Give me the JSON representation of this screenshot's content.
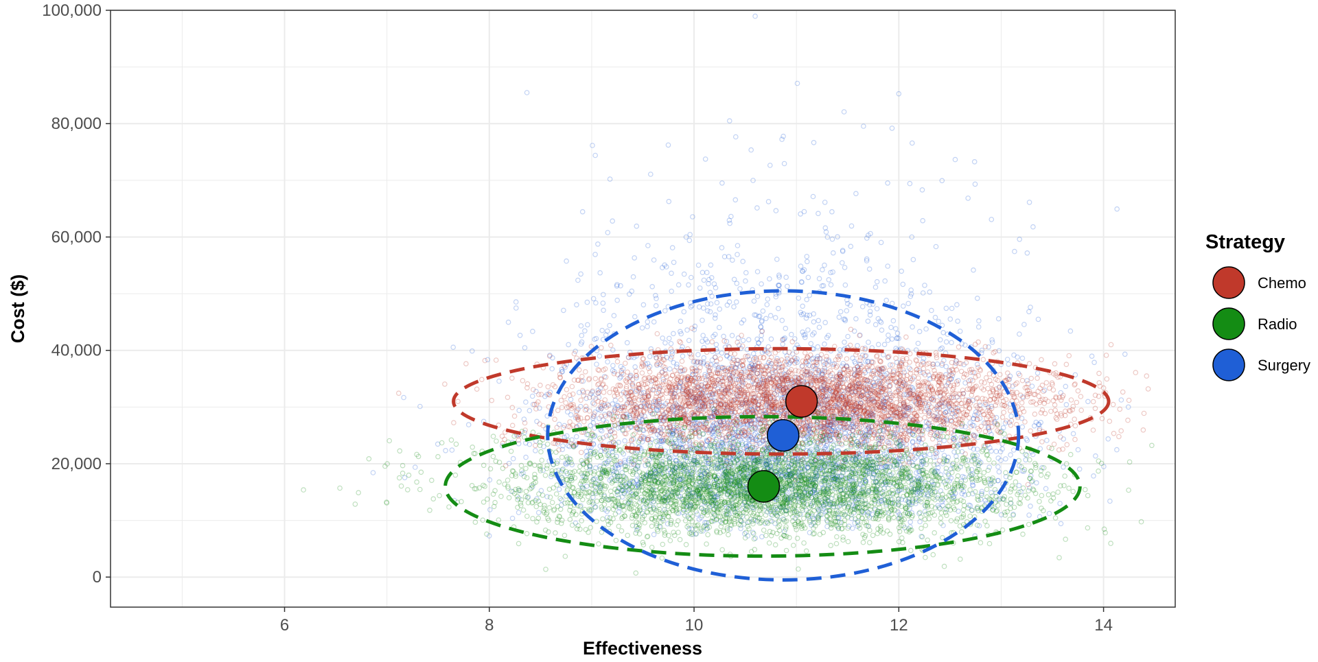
{
  "chart_data": {
    "type": "scatter",
    "title": "",
    "xlabel": "Effectiveness",
    "ylabel": "Cost ($)",
    "xlim": [
      4.3,
      14.7
    ],
    "ylim": [
      -5300,
      100000
    ],
    "x_ticks": [
      6,
      8,
      10,
      12,
      14
    ],
    "x_tick_labels": [
      "6",
      "8",
      "10",
      "12",
      "14"
    ],
    "y_ticks": [
      0,
      20000,
      40000,
      60000,
      80000,
      100000
    ],
    "y_tick_labels": [
      "0",
      "20,000",
      "40,000",
      "60,000",
      "80,000",
      "100,000"
    ],
    "grid": true,
    "legend_title": "Strategy",
    "legend_position": "right",
    "series": [
      {
        "name": "Chemo",
        "color": "#c0392b",
        "mean": {
          "effectiveness": 11.05,
          "cost": 31000
        },
        "spread": {
          "effectiveness_sd": 1.2,
          "cost_sd": 4000
        },
        "ellipse": {
          "center_x": 10.85,
          "center_y": 31000,
          "radius_x": 3.2,
          "radius_y": 9300
        },
        "sample_points": 3500
      },
      {
        "name": "Radio",
        "color": "#148c14",
        "mean": {
          "effectiveness": 10.68,
          "cost": 16000
        },
        "spread": {
          "effectiveness_sd": 1.2,
          "cost_sd": 4200
        },
        "ellipse": {
          "center_x": 10.67,
          "center_y": 16000,
          "radius_x": 3.1,
          "radius_y": 12300
        },
        "sample_points": 3500
      },
      {
        "name": "Surgery",
        "color": "#1f5fd6",
        "mean": {
          "effectiveness": 10.87,
          "cost": 25000
        },
        "spread": {
          "effectiveness_sd": 1.1,
          "cost_sd": 12500
        },
        "ellipse": {
          "center_x": 10.87,
          "center_y": 25000,
          "radius_x": 2.3,
          "radius_y": 25500
        },
        "sample_points": 3500
      }
    ]
  }
}
